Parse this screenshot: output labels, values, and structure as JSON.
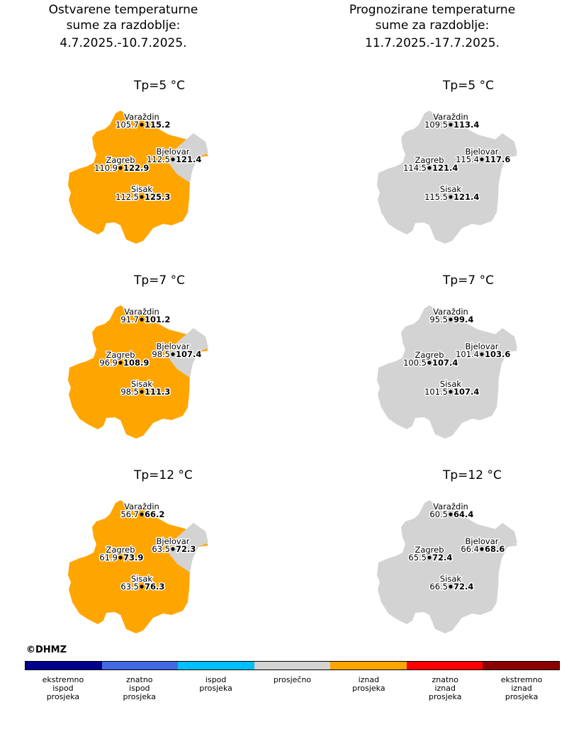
{
  "headers": {
    "left": [
      "Ostvarene temperaturne",
      "sume za razdoblje:",
      "4.7.2025.-10.7.2025."
    ],
    "right": [
      "Prognozirane temperaturne",
      "sume za razdoblje:",
      "11.7.2025.-17.7.2025."
    ]
  },
  "colors": {
    "ekstremno_ispod": "#00008b",
    "znatno_ispod": "#4169e1",
    "ispod": "#00bfff",
    "prosjecno": "#d3d3d3",
    "iznad": "#ffa500",
    "znatno_iznad": "#ff0000",
    "ekstremno_iznad": "#8b0000"
  },
  "chart_data": [
    {
      "type": "map",
      "title": "Tp=5 °C",
      "region_fill": "#ffa500",
      "east_fill": "#d3d3d3",
      "stations": [
        {
          "name": "Varaždin",
          "avg": "105.7",
          "value": "115.2"
        },
        {
          "name": "Bjelovar",
          "avg": "112.5",
          "value": "121.4"
        },
        {
          "name": "Zagreb",
          "avg": "110.9",
          "value": "122.9"
        },
        {
          "name": "Sisak",
          "avg": "112.5",
          "value": "125.3"
        }
      ]
    },
    {
      "type": "map",
      "title": "Tp=5 °C",
      "region_fill": "#d3d3d3",
      "east_fill": "#d3d3d3",
      "stations": [
        {
          "name": "Varaždin",
          "avg": "109.5",
          "value": "113.4"
        },
        {
          "name": "Bjelovar",
          "avg": "115.4",
          "value": "117.6"
        },
        {
          "name": "Zagreb",
          "avg": "114.5",
          "value": "121.4"
        },
        {
          "name": "Sisak",
          "avg": "115.5",
          "value": "121.4"
        }
      ]
    },
    {
      "type": "map",
      "title": "Tp=7 °C",
      "region_fill": "#ffa500",
      "east_fill": "#d3d3d3",
      "stations": [
        {
          "name": "Varaždin",
          "avg": "91.7",
          "value": "101.2"
        },
        {
          "name": "Bjelovar",
          "avg": "98.5",
          "value": "107.4"
        },
        {
          "name": "Zagreb",
          "avg": "96.9",
          "value": "108.9"
        },
        {
          "name": "Sisak",
          "avg": "98.5",
          "value": "111.3"
        }
      ]
    },
    {
      "type": "map",
      "title": "Tp=7 °C",
      "region_fill": "#d3d3d3",
      "east_fill": "#d3d3d3",
      "stations": [
        {
          "name": "Varaždin",
          "avg": "95.5",
          "value": "99.4"
        },
        {
          "name": "Bjelovar",
          "avg": "101.4",
          "value": "103.6"
        },
        {
          "name": "Zagreb",
          "avg": "100.5",
          "value": "107.4"
        },
        {
          "name": "Sisak",
          "avg": "101.5",
          "value": "107.4"
        }
      ]
    },
    {
      "type": "map",
      "title": "Tp=12 °C",
      "region_fill": "#ffa500",
      "east_fill": "#d3d3d3",
      "stations": [
        {
          "name": "Varaždin",
          "avg": "56.7",
          "value": "66.2"
        },
        {
          "name": "Bjelovar",
          "avg": "63.5",
          "value": "72.3"
        },
        {
          "name": "Zagreb",
          "avg": "61.9",
          "value": "73.9"
        },
        {
          "name": "Sisak",
          "avg": "63.5",
          "value": "76.3"
        }
      ]
    },
    {
      "type": "map",
      "title": "Tp=12 °C",
      "region_fill": "#d3d3d3",
      "east_fill": "#d3d3d3",
      "stations": [
        {
          "name": "Varaždin",
          "avg": "60.5",
          "value": "64.4"
        },
        {
          "name": "Bjelovar",
          "avg": "66.4",
          "value": "68.6"
        },
        {
          "name": "Zagreb",
          "avg": "65.5",
          "value": "72.4"
        },
        {
          "name": "Sisak",
          "avg": "66.5",
          "value": "72.4"
        }
      ]
    }
  ],
  "copyright": "©DHMZ",
  "legend": [
    {
      "label": "ekstremno\nispod\nprosjeka",
      "color": "#00008b"
    },
    {
      "label": "znatno\nispod\nprosjeka",
      "color": "#4169e1"
    },
    {
      "label": "ispod\nprosjeka",
      "color": "#00bfff"
    },
    {
      "label": "prosječno",
      "color": "#d3d3d3"
    },
    {
      "label": "iznad\nprosjeka",
      "color": "#ffa500"
    },
    {
      "label": "znatno\niznad\nprosjeka",
      "color": "#ff0000"
    },
    {
      "label": "ekstremno\niznad\nprosjeka",
      "color": "#8b0000"
    }
  ]
}
